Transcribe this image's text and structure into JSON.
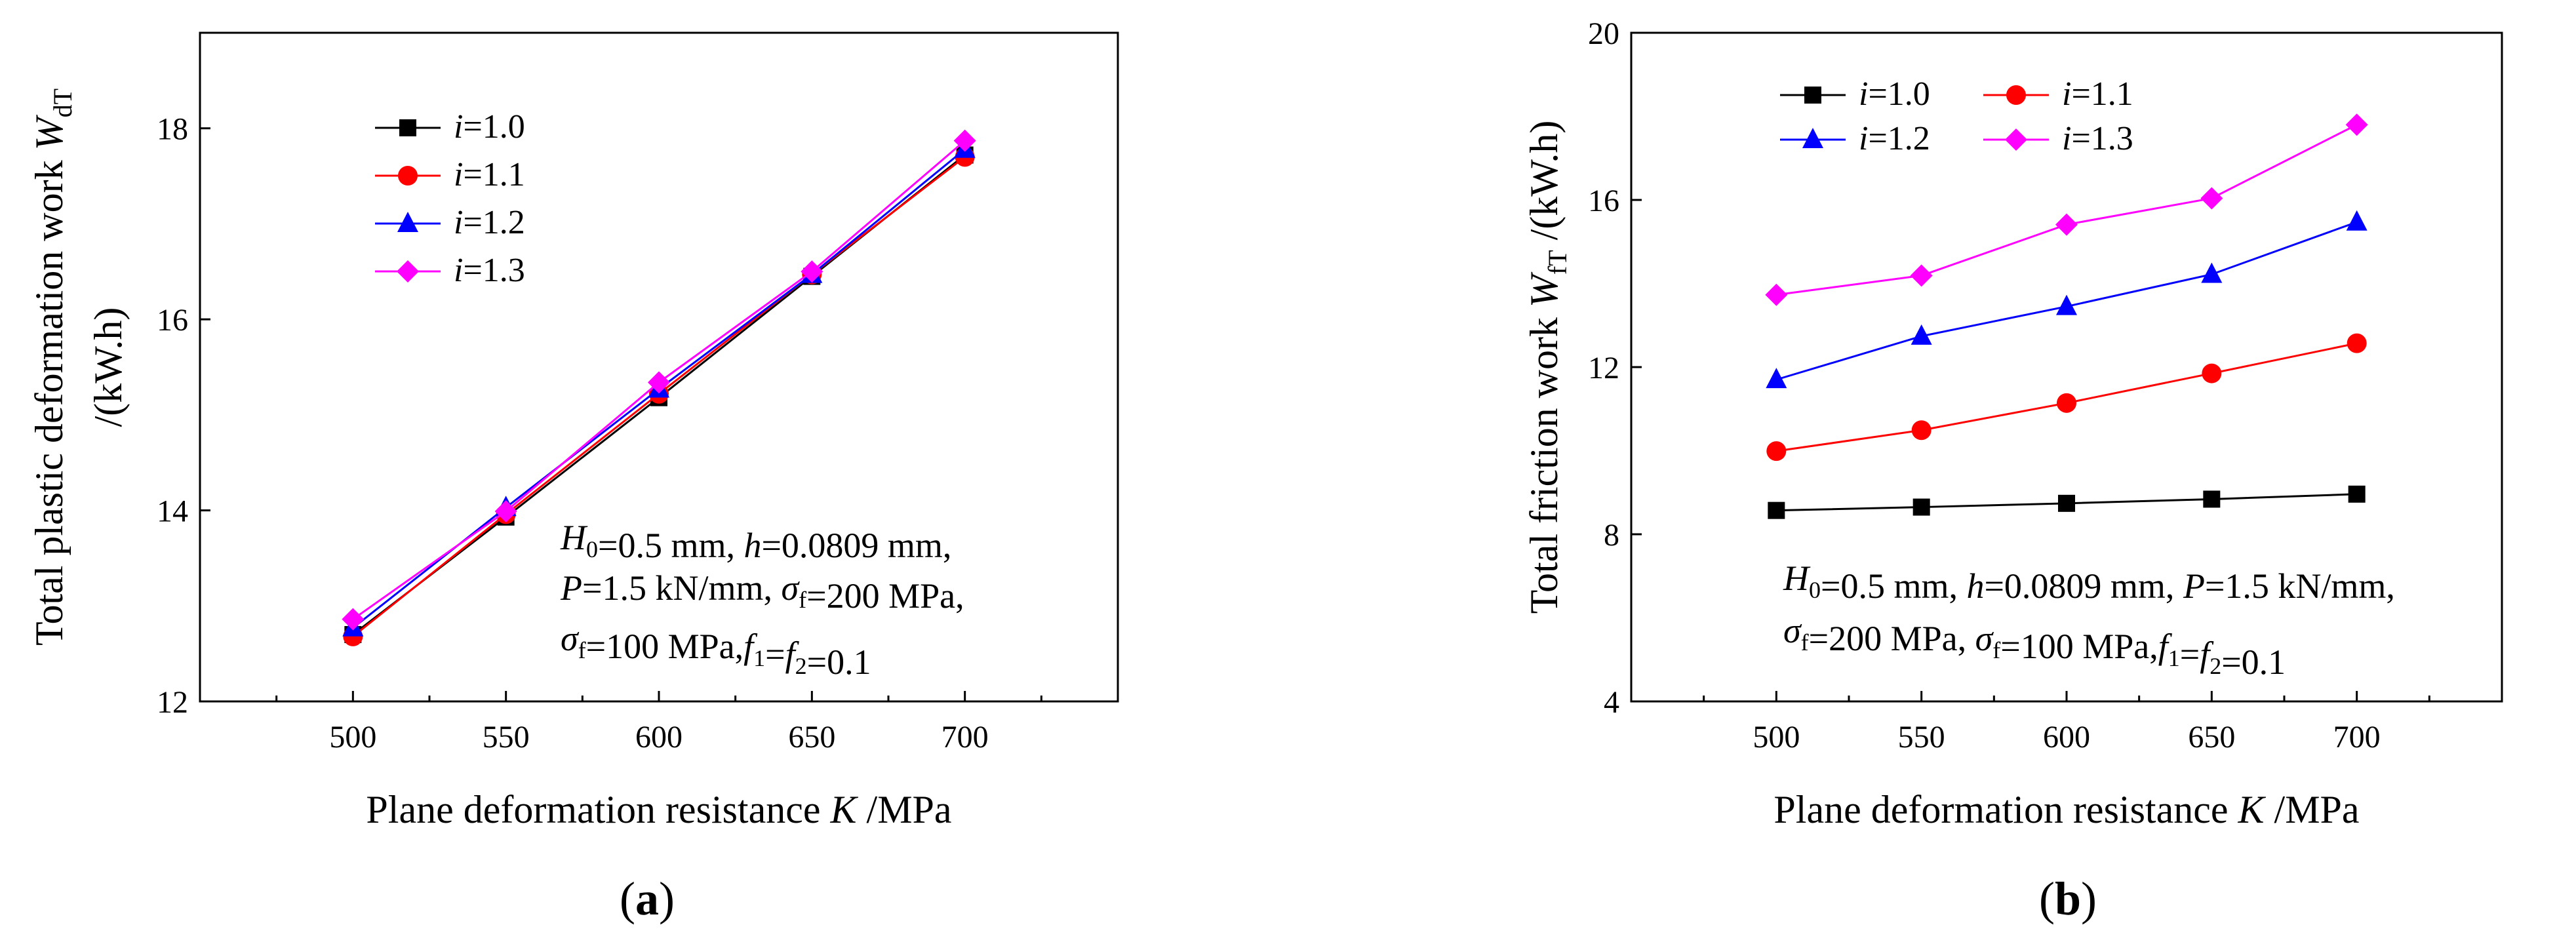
{
  "chart_data": [
    {
      "panel": "a",
      "type": "line",
      "x": [
        500,
        550,
        600,
        650,
        700
      ],
      "xlim": [
        450,
        750
      ],
      "ylim": [
        12,
        19
      ],
      "xticks": [
        500,
        550,
        600,
        650,
        700
      ],
      "yticks": [
        12,
        14,
        16,
        18
      ],
      "xlabel": "Plane deformation resistance K /MPa",
      "ylabel_line1": "Total plastic deformation work W",
      "ylabel_sub": "dT",
      "ylabel_line2": "/(kW.h)",
      "legend_position": "top-left",
      "series": [
        {
          "name": "1.0",
          "label_prefix": "i=",
          "color": "#000000",
          "marker": "square",
          "values": [
            12.7,
            13.93,
            15.18,
            16.45,
            17.72
          ]
        },
        {
          "name": "1.1",
          "label_prefix": "i=",
          "color": "#ff0000",
          "marker": "circle",
          "values": [
            12.68,
            13.96,
            15.22,
            16.47,
            17.7
          ]
        },
        {
          "name": "1.2",
          "label_prefix": "i=",
          "color": "#0000ff",
          "marker": "triangle",
          "values": [
            12.77,
            14.03,
            15.27,
            16.47,
            17.78
          ]
        },
        {
          "name": "1.3",
          "label_prefix": "i=",
          "color": "#ff00ff",
          "marker": "diamond",
          "values": [
            12.86,
            13.99,
            15.34,
            16.5,
            17.87
          ]
        }
      ],
      "annotation": [
        [
          {
            "t": "H",
            "i": true
          },
          {
            "t": "0",
            "sub": true
          },
          {
            "t": "=0.5 mm, "
          },
          {
            "t": "h",
            "i": true
          },
          {
            "t": "=0.0809 mm,"
          }
        ],
        [
          {
            "t": "P",
            "i": true
          },
          {
            "t": "=1.5 kN/mm, "
          },
          {
            "t": "σ",
            "i": true
          },
          {
            "t": "f",
            "sub": true
          },
          {
            "t": "=200 MPa,"
          }
        ],
        [
          {
            "t": "σ",
            "i": true
          },
          {
            "t": "f",
            "sub": true
          },
          {
            "t": "=100 MPa,"
          },
          {
            "t": "f",
            "i": true
          },
          {
            "t": "1",
            "sub": true
          },
          {
            "t": "="
          },
          {
            "t": "f",
            "i": true
          },
          {
            "t": "2",
            "sub": true
          },
          {
            "t": "=0.1"
          }
        ]
      ],
      "panel_label": "(a)"
    },
    {
      "panel": "b",
      "type": "line",
      "x": [
        500,
        550,
        600,
        650,
        700
      ],
      "xlim": [
        450,
        750
      ],
      "ylim": [
        4,
        20
      ],
      "xticks": [
        500,
        550,
        600,
        650,
        700
      ],
      "yticks": [
        4,
        8,
        12,
        16,
        20
      ],
      "xlabel": "Plane deformation resistance K /MPa",
      "ylabel_line1": "Total friction work W",
      "ylabel_sub": "fT",
      "ylabel_line2": " /(kW.h)",
      "legend_position": "top-left",
      "series": [
        {
          "name": "1.0",
          "label_prefix": "i=",
          "color": "#000000",
          "marker": "square",
          "values": [
            8.57,
            8.65,
            8.74,
            8.84,
            8.96
          ]
        },
        {
          "name": "1.1",
          "label_prefix": "i=",
          "color": "#ff0000",
          "marker": "circle",
          "values": [
            9.99,
            10.49,
            11.14,
            11.85,
            12.57
          ]
        },
        {
          "name": "1.2",
          "label_prefix": "i=",
          "color": "#0000ff",
          "marker": "triangle",
          "values": [
            11.7,
            12.74,
            13.45,
            14.22,
            15.47
          ]
        },
        {
          "name": "1.3",
          "label_prefix": "i=",
          "color": "#ff00ff",
          "marker": "diamond",
          "values": [
            13.73,
            14.19,
            15.41,
            16.04,
            17.8
          ]
        }
      ],
      "annotation": [
        [
          {
            "t": "H",
            "i": true
          },
          {
            "t": "0",
            "sub": true
          },
          {
            "t": "=0.5 mm, "
          },
          {
            "t": "h",
            "i": true
          },
          {
            "t": "=0.0809 mm, "
          },
          {
            "t": "P",
            "i": true
          },
          {
            "t": "=1.5 kN/mm,"
          }
        ],
        [
          {
            "t": "σ",
            "i": true
          },
          {
            "t": "f",
            "sub": true
          },
          {
            "t": "=200 MPa, "
          },
          {
            "t": "σ",
            "i": true
          },
          {
            "t": "f",
            "sub": true
          },
          {
            "t": "=100 MPa,"
          },
          {
            "t": "f",
            "i": true
          },
          {
            "t": "1",
            "sub": true
          },
          {
            "t": "="
          },
          {
            "t": "f",
            "i": true
          },
          {
            "t": "2",
            "sub": true
          },
          {
            "t": "=0.1"
          }
        ]
      ],
      "panel_label": "(b)"
    }
  ]
}
